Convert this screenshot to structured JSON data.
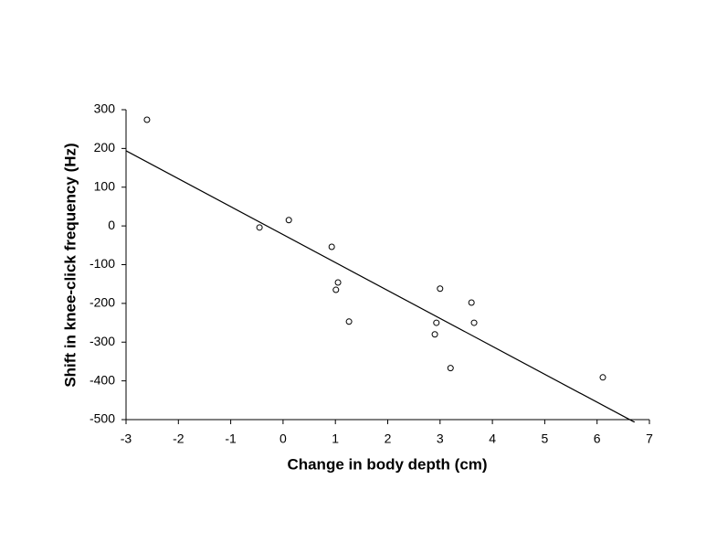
{
  "chart_data": {
    "type": "scatter",
    "xlabel": "Change in body depth (cm)",
    "ylabel": "Shift in knee-click frequency (Hz)",
    "x": [
      -2.6,
      -0.45,
      0.11,
      0.93,
      1.05,
      1.01,
      1.26,
      2.93,
      2.9,
      3.0,
      3.2,
      3.6,
      3.65,
      6.11
    ],
    "values": [
      274,
      -4,
      15,
      -54,
      -146,
      -165,
      -247,
      -250,
      -280,
      -162,
      -367,
      -198,
      -250,
      -391
    ],
    "color": "#000000",
    "trendline": {
      "x": [
        -3,
        6.72
      ],
      "values": [
        194,
        -507
      ],
      "color": "#000000"
    },
    "xlim": [
      -3,
      7
    ],
    "xticks": [
      -3,
      -2,
      -1,
      0,
      1,
      2,
      3,
      4,
      5,
      6,
      7
    ],
    "ylim": [
      -500,
      300
    ],
    "yticks": [
      -500,
      -400,
      -300,
      -200,
      -100,
      0,
      100,
      200,
      300
    ],
    "grid": false
  }
}
